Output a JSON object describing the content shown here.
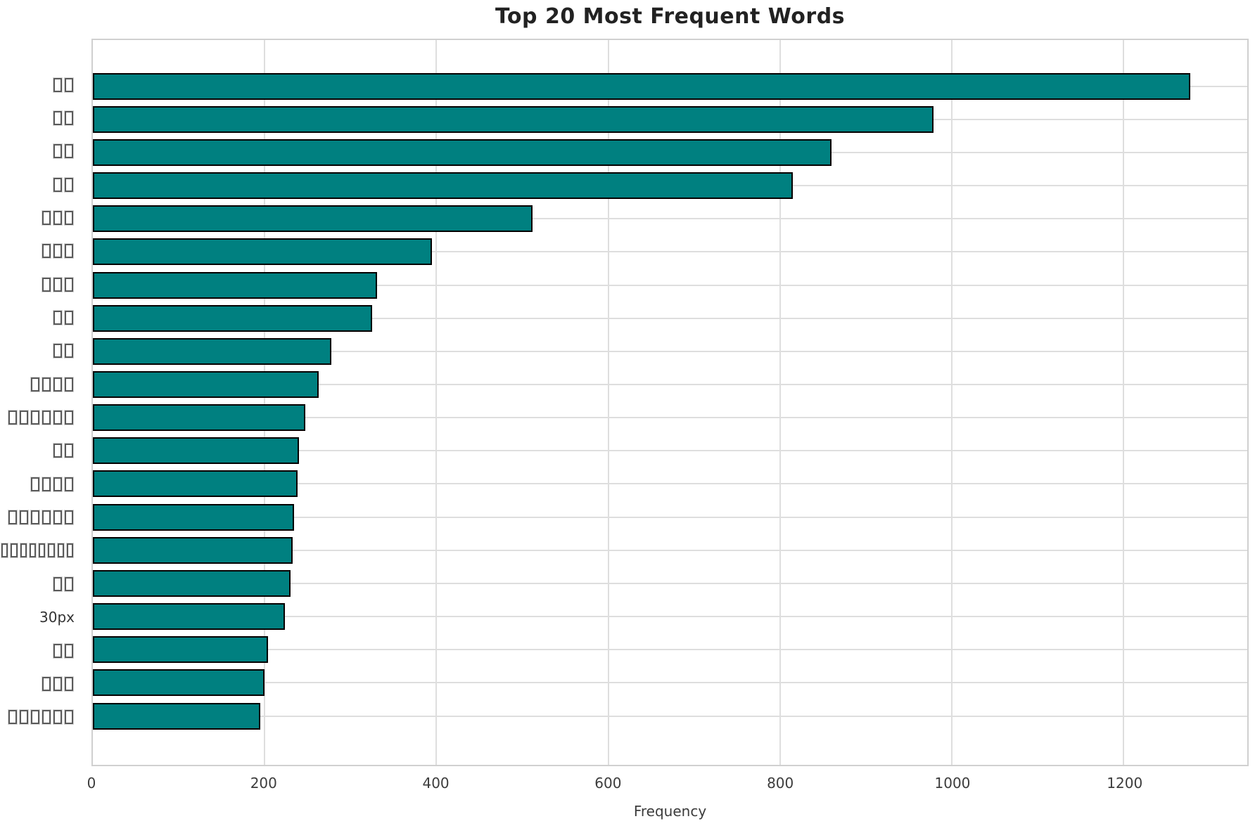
{
  "chart_data": {
    "type": "bar",
    "orientation": "horizontal",
    "title": "Top 20 Most Frequent Words",
    "xlabel": "Frequency",
    "ylabel": "",
    "xlim": [
      0,
      1344
    ],
    "xticks": [
      0,
      200,
      400,
      600,
      800,
      1000,
      1200
    ],
    "grid": true,
    "legend": false,
    "bar_color": "#008080",
    "bar_edge_color": "#000000",
    "note": "Y-axis category words are CJK strings rendered as missing-glyph (tofu) boxes in the source image; only '30px' is legible.",
    "categories": [
      {
        "label": "□□",
        "missing_glyphs": true,
        "char_count": 2
      },
      {
        "label": "□□",
        "missing_glyphs": true,
        "char_count": 2
      },
      {
        "label": "□□",
        "missing_glyphs": true,
        "char_count": 2
      },
      {
        "label": "□□",
        "missing_glyphs": true,
        "char_count": 2
      },
      {
        "label": "□□□",
        "missing_glyphs": true,
        "char_count": 3
      },
      {
        "label": "□□□",
        "missing_glyphs": true,
        "char_count": 3
      },
      {
        "label": "□□□",
        "missing_glyphs": true,
        "char_count": 3
      },
      {
        "label": "□□",
        "missing_glyphs": true,
        "char_count": 2
      },
      {
        "label": "□□",
        "missing_glyphs": true,
        "char_count": 2
      },
      {
        "label": "□□□□",
        "missing_glyphs": true,
        "char_count": 4
      },
      {
        "label": "□□□□□□",
        "missing_glyphs": true,
        "char_count": 6
      },
      {
        "label": "□□",
        "missing_glyphs": true,
        "char_count": 2
      },
      {
        "label": "□□□□",
        "missing_glyphs": true,
        "char_count": 4
      },
      {
        "label": "□□□□□□",
        "missing_glyphs": true,
        "char_count": 6
      },
      {
        "label": "□□□□□□□□",
        "missing_glyphs": true,
        "char_count": 8
      },
      {
        "label": "□□",
        "missing_glyphs": true,
        "char_count": 2
      },
      {
        "label": "30px",
        "missing_glyphs": false,
        "char_count": 4
      },
      {
        "label": "□□",
        "missing_glyphs": true,
        "char_count": 2
      },
      {
        "label": "□□□",
        "missing_glyphs": true,
        "char_count": 3
      },
      {
        "label": "□□□□□□",
        "missing_glyphs": true,
        "char_count": 6
      }
    ],
    "values": [
      1278,
      979,
      860,
      815,
      512,
      395,
      331,
      325,
      278,
      263,
      247,
      240,
      238,
      234,
      233,
      230,
      224,
      204,
      200,
      195
    ]
  }
}
